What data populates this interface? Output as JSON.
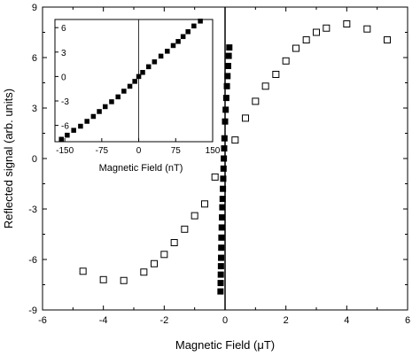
{
  "chart_data": [
    {
      "type": "scatter",
      "title": "",
      "xlabel": "Magnetic Field (μT)",
      "ylabel": "Reflected signal (arb. units)",
      "xlim": [
        -6,
        6
      ],
      "ylim": [
        -9,
        9
      ],
      "xticks": [
        -6,
        -4,
        -2,
        0,
        2,
        4,
        6
      ],
      "xtick_labels": [
        "-6",
        "-4",
        "-2",
        "0",
        "2",
        "4",
        "6"
      ],
      "yticks": [
        -9,
        -6,
        -3,
        0,
        3,
        6,
        9
      ],
      "ytick_labels": [
        "-9",
        "-6",
        "-3",
        "0",
        "3",
        "6",
        "9"
      ],
      "grid": false,
      "zero_line_x": true,
      "series": [
        {
          "marker": "open-square",
          "color": "#000000",
          "x": [
            -4.67,
            -4.0,
            -3.33,
            -2.67,
            -2.33,
            -2.0,
            -1.67,
            -1.33,
            -1.0,
            -0.67,
            -0.33,
            0.33,
            0.67,
            1.0,
            1.33,
            1.67,
            2.0,
            2.33,
            2.67,
            3.0,
            3.33,
            4.0,
            4.67,
            5.33
          ],
          "y": [
            -6.7,
            -7.2,
            -7.25,
            -6.75,
            -6.25,
            -5.7,
            -5.0,
            -4.2,
            -3.4,
            -2.7,
            -1.1,
            1.1,
            2.4,
            3.4,
            4.3,
            5.0,
            5.8,
            6.55,
            7.05,
            7.5,
            7.75,
            8.0,
            7.7,
            7.05
          ]
        },
        {
          "marker": "filled-square",
          "color": "#000000",
          "x": [
            -0.15,
            -0.145,
            -0.14,
            -0.135,
            -0.13,
            -0.125,
            -0.12,
            -0.11,
            -0.1,
            -0.09,
            -0.08,
            -0.07,
            -0.06,
            -0.05,
            -0.04,
            -0.03,
            -0.02,
            0.0,
            0.02,
            0.04,
            0.06,
            0.08,
            0.1,
            0.12,
            0.14
          ],
          "y": [
            -7.9,
            -7.4,
            -6.9,
            -6.4,
            -5.9,
            -5.3,
            -4.7,
            -4.1,
            -3.5,
            -2.9,
            -2.4,
            -1.8,
            -1.2,
            -0.6,
            0.0,
            0.6,
            1.2,
            2.2,
            2.9,
            3.6,
            4.3,
            4.9,
            5.5,
            6.1,
            6.6
          ]
        }
      ]
    },
    {
      "type": "scatter",
      "title": "",
      "xlabel": "Magnetic Field (nT)",
      "ylabel": "",
      "xlim": [
        -170,
        150
      ],
      "ylim": [
        -8,
        7
      ],
      "xticks": [
        -150,
        -75,
        0,
        75,
        150
      ],
      "xtick_labels": [
        "-150",
        "-75",
        "0",
        "75",
        "150"
      ],
      "yticks": [
        -6,
        -3,
        0,
        3,
        6
      ],
      "ytick_labels": [
        "-6",
        "-3",
        "0",
        "3",
        "6"
      ],
      "grid": false,
      "zero_line_x": true,
      "series": [
        {
          "marker": "filled-square",
          "color": "#000000",
          "x": [
            -157,
            -145,
            -132,
            -118,
            -105,
            -92,
            -80,
            -68,
            -55,
            -42,
            -30,
            -18,
            -8,
            0,
            8,
            20,
            32,
            45,
            58,
            70,
            80,
            90,
            100,
            112,
            125
          ],
          "y": [
            -7.7,
            -7.2,
            -6.6,
            -6.1,
            -5.5,
            -4.9,
            -4.3,
            -3.7,
            -3.1,
            -2.5,
            -1.8,
            -1.2,
            -0.6,
            0.0,
            0.5,
            1.2,
            1.8,
            2.5,
            3.1,
            3.8,
            4.3,
            4.9,
            5.5,
            6.2,
            6.8
          ]
        }
      ]
    }
  ]
}
